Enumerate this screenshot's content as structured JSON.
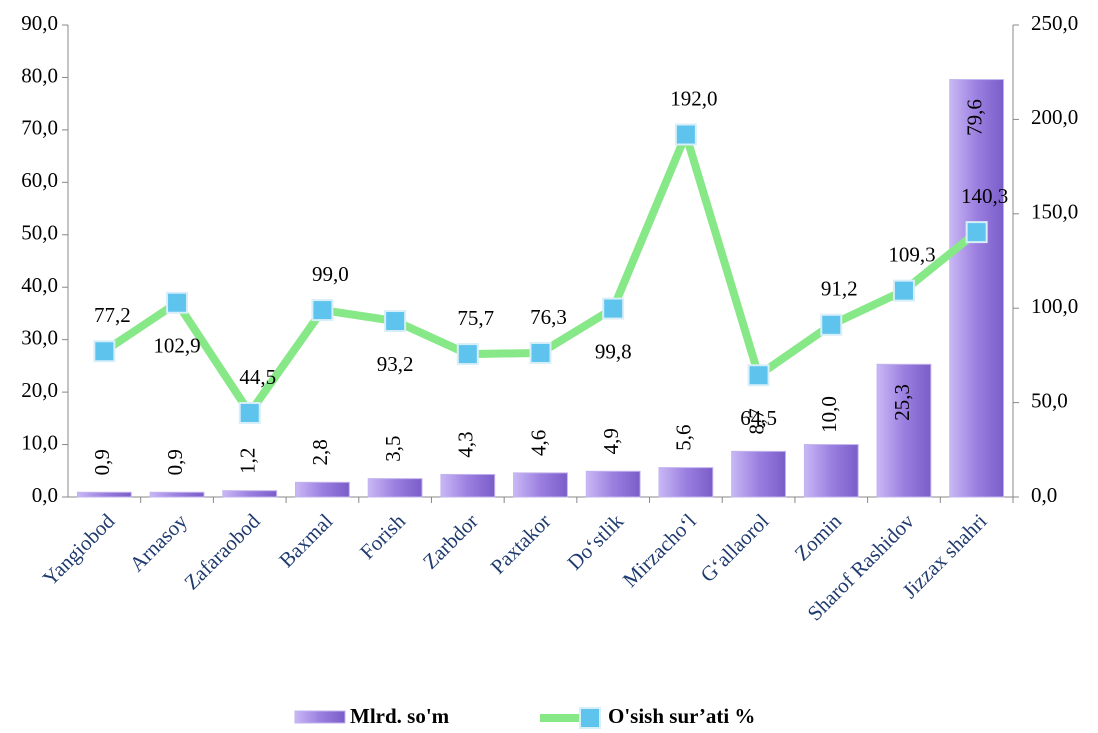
{
  "chart_data": {
    "type": "bar",
    "categories": [
      "Yangiobod",
      "Arnasoy",
      "Zafaraobod",
      "Baxmal",
      "Forish",
      "Zarbdor",
      "Paxtakor",
      "Do‘stlik",
      "Mirzacho‘l",
      "G‘allaorol",
      "Zomin",
      "Sharof Rashidov",
      "Jizzax shahri"
    ],
    "series": [
      {
        "name": "Mlrd. so'm",
        "type": "bar",
        "color": "#9b7fe0",
        "values": [
          0.9,
          0.9,
          1.2,
          2.8,
          3.5,
          4.3,
          4.6,
          4.9,
          5.6,
          8.7,
          10.0,
          25.3,
          79.6
        ],
        "value_labels": [
          "0,9",
          "0,9",
          "1,2",
          "2,8",
          "3,5",
          "4,3",
          "4,6",
          "4,9",
          "5,6",
          "8,7",
          "10,0",
          "25,3",
          "79,6"
        ]
      },
      {
        "name": "O'sish sur’ati %",
        "type": "line",
        "axis": "y2",
        "color": "#86e886",
        "marker_color": "#5ec4ee",
        "values": [
          77.2,
          102.9,
          44.5,
          99.0,
          93.2,
          75.7,
          76.3,
          99.8,
          192.0,
          64.5,
          91.2,
          109.3,
          140.3
        ],
        "value_labels": [
          "77,2",
          "102,9",
          "44,5",
          "99,0",
          "93,2",
          "75,7",
          "76,3",
          "99,8",
          "192,0",
          "64,5",
          "91,2",
          "109,3",
          "140,3"
        ]
      }
    ],
    "ylim": [
      0,
      90
    ],
    "yticks": [
      {
        "value": 0,
        "label": "0,0"
      },
      {
        "value": 10,
        "label": "10,0"
      },
      {
        "value": 20,
        "label": "20,0"
      },
      {
        "value": 30,
        "label": "30,0"
      },
      {
        "value": 40,
        "label": "40,0"
      },
      {
        "value": 50,
        "label": "50,0"
      },
      {
        "value": 60,
        "label": "60,0"
      },
      {
        "value": 70,
        "label": "70,0"
      },
      {
        "value": 80,
        "label": "80,0"
      },
      {
        "value": 90,
        "label": "90,0"
      }
    ],
    "y2lim": [
      0,
      250
    ],
    "y2ticks": [
      {
        "value": 0,
        "label": "0,0"
      },
      {
        "value": 50,
        "label": "50,0"
      },
      {
        "value": 100,
        "label": "100,0"
      },
      {
        "value": 150,
        "label": "150,0"
      },
      {
        "value": 200,
        "label": "200,0"
      },
      {
        "value": 250,
        "label": "250,0"
      }
    ],
    "legend": "bottom"
  }
}
